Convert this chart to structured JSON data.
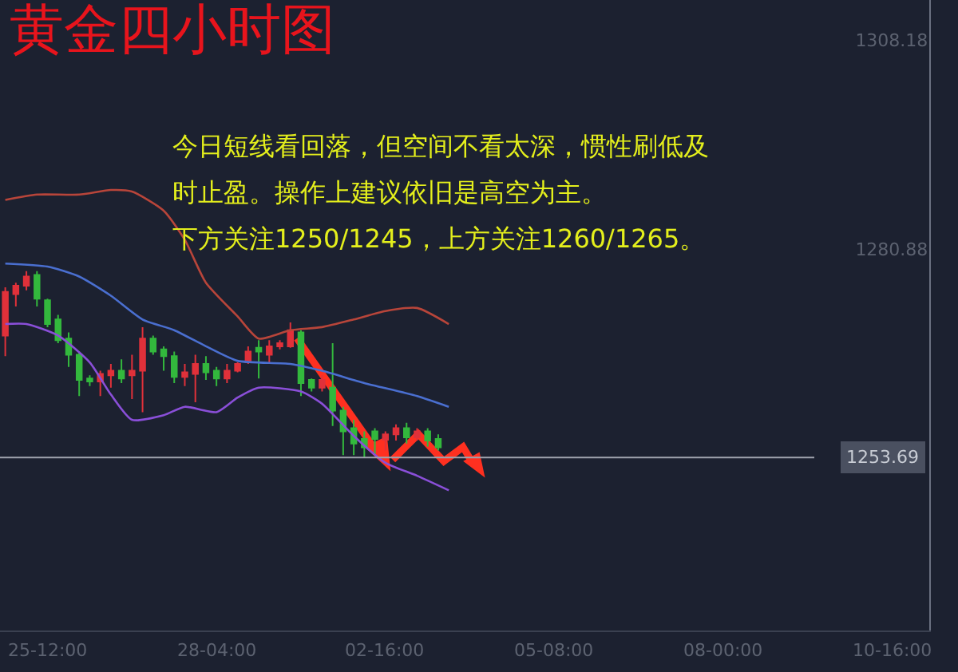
{
  "chart_data": {
    "type": "candlestick",
    "title": "黄金四小时图",
    "annotations": [
      "今日短线看回落，但空间不看太深，惯性刷低及",
      "时止盈。操作上建议依旧是高空为主。",
      "下方关注1250/1245，上方关注1260/1265。"
    ],
    "categories": [
      null,
      null,
      null,
      null,
      "25-12:00",
      null,
      null,
      null,
      null,
      null,
      null,
      null,
      null,
      null,
      null,
      null,
      null,
      null,
      null,
      null,
      "28-04:00",
      null,
      null,
      null,
      null,
      null,
      null,
      null,
      null,
      null,
      null,
      null,
      null,
      null,
      null,
      null,
      "02-16:00",
      null,
      null,
      null,
      null,
      null,
      null,
      null,
      null,
      null,
      null,
      null,
      null,
      null,
      null,
      null,
      "05-08:00",
      null,
      null,
      null,
      null,
      null,
      null,
      null,
      null,
      null,
      null,
      null,
      null,
      null,
      null,
      null,
      "08-00:00",
      null,
      null,
      null,
      null,
      null,
      null,
      null,
      null,
      null,
      null,
      null,
      null,
      null,
      null,
      null,
      "10-16:00",
      null,
      null,
      null
    ],
    "ylim": [
      1231.1,
      1313.4
    ],
    "yticks": [
      1308.18,
      1280.88
    ],
    "ref_lines": [
      {
        "axis": "y",
        "value": 1253.69,
        "label": "1253.69",
        "color": "#a0a4ae"
      }
    ],
    "grid": false,
    "marker": "none",
    "series": [
      {
        "ohlc": [
          [
            1269.6,
            1275.9,
            1266.9,
            1275.3
          ],
          [
            1275.0,
            1276.5,
            1273.4,
            1276.1
          ],
          [
            1276.1,
            1278.0,
            1275.5,
            1277.3
          ],
          [
            1277.5,
            1278.0,
            1273.4,
            1274.4
          ],
          [
            1274.2,
            1274.4,
            1270.7,
            1271.1
          ],
          [
            1271.7,
            1272.3,
            1268.6,
            1269.0
          ],
          [
            1269.2,
            1270.0,
            1265.5,
            1267.1
          ],
          [
            1267.1,
            1267.5,
            1261.7,
            1263.8
          ],
          [
            1264.0,
            1264.4,
            1263.0,
            1263.6
          ],
          [
            1263.6,
            1265.0,
            1261.7,
            1264.6
          ],
          [
            1264.4,
            1265.9,
            1262.8,
            1265.0
          ],
          [
            1265.0,
            1266.5,
            1263.4,
            1264.0
          ],
          [
            1264.4,
            1267.1,
            1261.3,
            1265.0
          ],
          [
            1265.0,
            1270.7,
            1259.6,
            1269.2
          ],
          [
            1269.2,
            1269.6,
            1267.1,
            1267.5
          ],
          [
            1267.8,
            1268.2,
            1265.0,
            1266.9
          ],
          [
            1266.9,
            1267.5,
            1263.4,
            1264.2
          ],
          [
            1264.2,
            1265.9,
            1263.0,
            1264.8
          ],
          [
            1264.6,
            1267.1,
            1260.9,
            1265.9
          ],
          [
            1265.9,
            1266.9,
            1263.8,
            1264.8
          ],
          [
            1265.0,
            1265.5,
            1263.0,
            1264.0
          ],
          [
            1264.0,
            1265.9,
            1263.4,
            1265.0
          ],
          [
            1265.0,
            1266.1,
            1264.8,
            1265.9
          ],
          [
            1266.1,
            1268.2,
            1265.9,
            1267.5
          ],
          [
            1268.0,
            1269.0,
            1264.0,
            1267.5
          ],
          [
            1267.1,
            1269.0,
            1266.1,
            1268.2
          ],
          [
            1268.2,
            1269.0,
            1267.8,
            1268.6
          ],
          [
            1268.2,
            1271.3,
            1268.0,
            1270.3
          ],
          [
            1270.0,
            1270.3,
            1261.7,
            1263.4
          ],
          [
            1263.8,
            1264.0,
            1262.3,
            1262.8
          ],
          [
            1262.8,
            1264.4,
            1262.3,
            1263.8
          ],
          [
            1262.8,
            1268.6,
            1257.8,
            1259.8
          ],
          [
            1259.8,
            1260.3,
            1254.0,
            1257.1
          ],
          [
            1257.5,
            1258.6,
            1254.0,
            1255.5
          ],
          [
            1256.1,
            1257.1,
            1253.6,
            1255.0
          ],
          [
            1257.1,
            1257.5,
            1254.0,
            1256.1
          ],
          [
            1256.0,
            1257.1,
            1254.6,
            1256.7
          ],
          [
            1256.7,
            1258.0,
            1255.9,
            1257.5
          ],
          [
            1257.5,
            1258.2,
            1255.5,
            1256.3
          ],
          [
            1256.3,
            1257.5,
            1255.9,
            1257.1
          ],
          [
            1257.1,
            1257.5,
            1255.1,
            1255.9
          ],
          [
            1256.1,
            1256.7,
            1254.6,
            1255.0
          ],
          null,
          null,
          null,
          null,
          null,
          null,
          null,
          null,
          null,
          null,
          null,
          null,
          null,
          null,
          null,
          null,
          null,
          null,
          null,
          null,
          null,
          null,
          null,
          null,
          null,
          null,
          null,
          null,
          null,
          null,
          null,
          null,
          null,
          null,
          null,
          null,
          null,
          null,
          null,
          null,
          null,
          null,
          null,
          null,
          null,
          null
        ]
      },
      {
        "type": "line",
        "color": "#b8453a",
        "values": [
          1287.3,
          null,
          null,
          1288.0,
          null,
          null,
          null,
          1288.0,
          null,
          null,
          1288.6,
          null,
          1288.4,
          null,
          null,
          1285.9,
          null,
          1282.1,
          null,
          1276.5,
          null,
          null,
          1272.1,
          null,
          1269.2,
          null,
          null,
          1270.3,
          null,
          null,
          1270.7,
          null,
          null,
          1271.7,
          null,
          null,
          1272.8,
          null,
          null,
          1273.2,
          null,
          null,
          1271.1,
          null,
          null,
          null,
          null,
          null,
          null,
          null,
          null,
          null,
          null,
          null,
          null,
          null,
          null,
          null,
          null,
          null,
          null,
          null,
          null,
          null,
          null,
          null,
          null,
          null,
          null,
          null,
          null,
          null,
          null,
          null,
          null,
          null,
          null,
          null,
          null,
          null,
          null,
          null,
          null,
          null,
          null,
          null,
          null,
          null
        ]
      },
      {
        "type": "line",
        "color": "#4a6fd0",
        "values": [
          1279.0,
          null,
          null,
          null,
          1278.6,
          null,
          null,
          1277.3,
          null,
          null,
          1274.8,
          null,
          null,
          1271.7,
          null,
          null,
          1270.3,
          null,
          null,
          1268.2,
          null,
          null,
          1266.3,
          null,
          null,
          null,
          null,
          1265.9,
          null,
          null,
          1265.0,
          null,
          null,
          null,
          1263.4,
          null,
          null,
          null,
          null,
          1261.7,
          null,
          null,
          1260.3,
          null,
          null,
          null,
          null,
          null,
          null,
          null,
          null,
          null,
          null,
          null,
          null,
          null,
          null,
          null,
          null,
          null,
          null,
          null,
          null,
          null,
          null,
          null,
          null,
          null,
          null,
          null,
          null,
          null,
          null,
          null,
          null,
          null,
          null,
          null,
          null,
          null,
          null,
          null,
          null,
          null,
          null,
          null,
          null,
          null
        ]
      },
      {
        "type": "line",
        "color": "#8a4fd8",
        "values": [
          1271.1,
          null,
          1271.1,
          null,
          null,
          1269.6,
          null,
          null,
          1266.1,
          null,
          1261.9,
          null,
          1258.6,
          null,
          null,
          1259.2,
          null,
          1260.3,
          null,
          null,
          1259.6,
          null,
          1261.5,
          null,
          1262.8,
          null,
          null,
          null,
          1262.3,
          null,
          1260.7,
          null,
          null,
          1256.5,
          null,
          null,
          1253.0,
          null,
          null,
          1251.3,
          null,
          null,
          1249.4,
          null,
          null,
          null,
          null,
          null,
          null,
          null,
          null,
          null,
          null,
          null,
          null,
          null,
          null,
          null,
          null,
          null,
          null,
          null,
          null,
          null,
          null,
          null,
          null,
          null,
          null,
          null,
          null,
          null,
          null,
          null,
          null,
          null,
          null,
          null,
          null,
          null,
          null,
          null,
          null,
          null,
          null,
          null,
          null,
          null
        ]
      }
    ]
  }
}
